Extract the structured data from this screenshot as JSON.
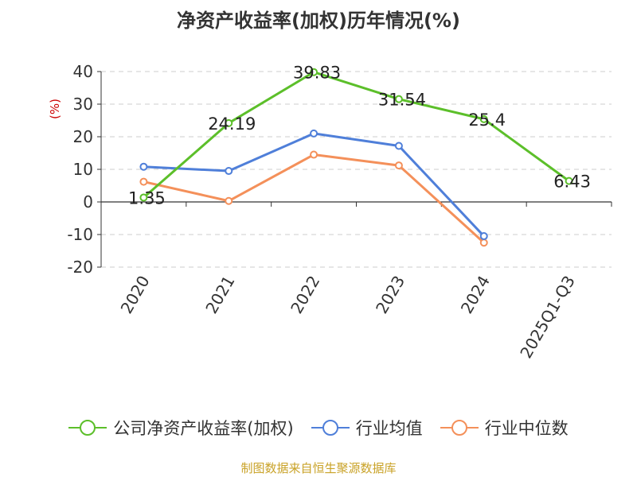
{
  "title": "净资产收益率(加权)历年情况(%)",
  "unit_label": "(%)",
  "source": "制图数据来自恒生聚源数据库",
  "chart_data": {
    "type": "line",
    "title": "净资产收益率(加权)历年情况(%)",
    "xlabel": "",
    "ylabel": "(%)",
    "categories": [
      "2020",
      "2021",
      "2022",
      "2023",
      "2024",
      "2025Q1-Q3"
    ],
    "ylim": [
      -20,
      40
    ],
    "yticks": [
      "40",
      "30",
      "20",
      "10",
      "0",
      "-10",
      "-20"
    ],
    "grid": true,
    "legend_position": "bottom",
    "series": [
      {
        "name": "公司净资产收益率(加权)",
        "color": "#5cbf2a",
        "values": [
          1.35,
          24.19,
          39.83,
          31.54,
          25.4,
          6.43
        ],
        "labels": [
          "1.35",
          "24.19",
          "39.83",
          "31.54",
          "25.4",
          "6.43"
        ]
      },
      {
        "name": "行业均值",
        "color": "#4f7fd9",
        "values": [
          10.8,
          9.5,
          21.0,
          17.2,
          -10.5,
          null
        ]
      },
      {
        "name": "行业中位数",
        "color": "#f4905a",
        "values": [
          6.2,
          0.3,
          14.5,
          11.2,
          -12.5,
          null
        ]
      }
    ]
  }
}
